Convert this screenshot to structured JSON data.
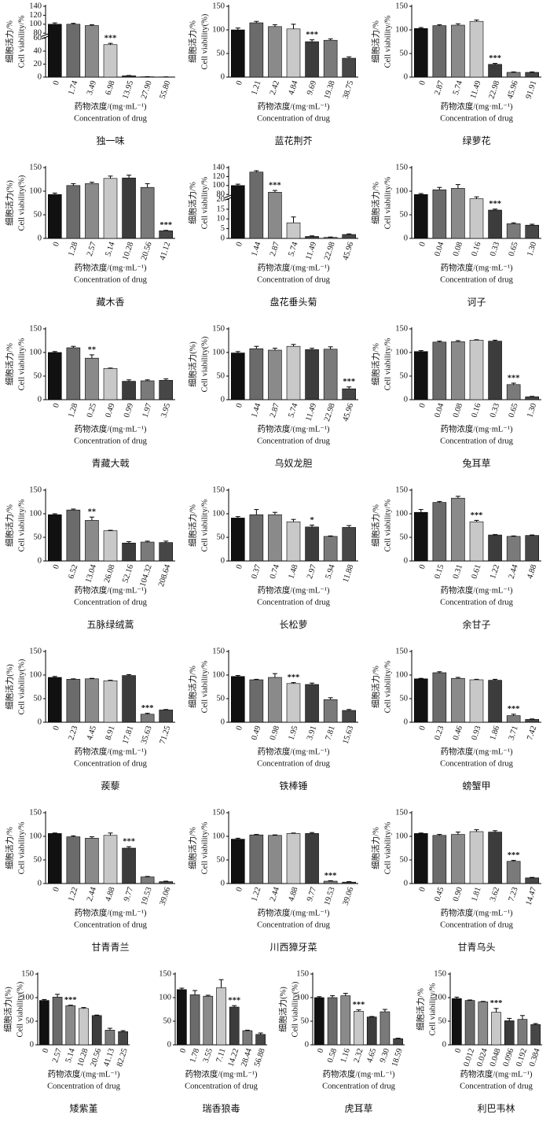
{
  "bar_colors": [
    "#111111",
    "#6b6b6b",
    "#8a8a8a",
    "#c8c8c8",
    "#3c3c3c",
    "#7a7a7a",
    "#474747"
  ],
  "chart_data": [
    {
      "type": "bar",
      "title": "独一味",
      "ylabel": [
        "细胞活力/%",
        "Cell viability/%"
      ],
      "xlabel": [
        "药物浓度/(mg·mL⁻¹)",
        "Concentration of drug"
      ],
      "categories": [
        "0",
        "1.74",
        "3.49",
        "6.98",
        "13.95",
        "27.90",
        "55.80"
      ],
      "values": [
        100,
        100,
        97,
        50,
        2,
        0.5,
        0.3
      ],
      "errors": [
        3,
        2,
        2,
        2,
        0.5,
        0.2,
        0.1
      ],
      "significance": [
        null,
        null,
        null,
        "***",
        null,
        null,
        null
      ],
      "ylim": [
        0,
        140
      ],
      "yticks": [
        0,
        20,
        40,
        60,
        80,
        100,
        120,
        140
      ],
      "broken_axis": [
        60,
        80
      ]
    },
    {
      "type": "bar",
      "title": "蓝花荆芥",
      "ylabel": [
        "细胞活力/%",
        "Cell viability(%)"
      ],
      "xlabel": [
        "药物浓度/(mg·mL⁻¹)",
        "Concentration of drug"
      ],
      "categories": [
        "0",
        "1.21",
        "2.42",
        "4.84",
        "9.69",
        "19.38",
        "38.75"
      ],
      "values": [
        100,
        115,
        107,
        102,
        75,
        78,
        40
      ],
      "errors": [
        4,
        3,
        4,
        10,
        4,
        3,
        3
      ],
      "significance": [
        null,
        null,
        null,
        null,
        "***",
        null,
        null
      ],
      "ylim": [
        0,
        150
      ],
      "yticks": [
        0,
        50,
        100,
        150
      ]
    },
    {
      "type": "bar",
      "title": "绿萝花",
      "ylabel": [
        "细胞活力/%",
        "Cell viability/%"
      ],
      "xlabel": [
        "药物浓度/(mg·mL⁻¹)",
        "Concentration of drug"
      ],
      "categories": [
        "0",
        "2.87",
        "5.74",
        "11.49",
        "22.98",
        "45.96",
        "91.91"
      ],
      "values": [
        103,
        109,
        110,
        118,
        27,
        10,
        10
      ],
      "errors": [
        2,
        2,
        3,
        3,
        2,
        1,
        1
      ],
      "significance": [
        null,
        null,
        null,
        null,
        "***",
        null,
        null
      ],
      "ylim": [
        0,
        150
      ],
      "yticks": [
        0,
        50,
        100,
        150
      ]
    },
    {
      "type": "bar",
      "title": "藏木香",
      "ylabel": [
        "细胞活力(%)",
        "Cell viability(%)"
      ],
      "xlabel": [
        "药物浓度/(mg·mL⁻¹)",
        "Concentration of drug"
      ],
      "categories": [
        "0",
        "1.28",
        "2.57",
        "5.14",
        "10.28",
        "20.56",
        "41.12"
      ],
      "values": [
        93,
        112,
        116,
        127,
        128,
        108,
        16
      ],
      "errors": [
        3,
        4,
        3,
        5,
        6,
        8,
        1
      ],
      "significance": [
        null,
        null,
        null,
        null,
        null,
        null,
        "***"
      ],
      "ylim": [
        0,
        150
      ],
      "yticks": [
        0,
        50,
        100,
        150
      ]
    },
    {
      "type": "bar",
      "title": "盘花垂头菊",
      "ylabel": [
        "细胞活力/%",
        "Cell viability/%"
      ],
      "xlabel": [
        "药物浓度/(mg·mL⁻¹)",
        "Concentration of drug"
      ],
      "categories": [
        "0",
        "1.44",
        "2.87",
        "5.74",
        "11.49",
        "22.98",
        "45.96"
      ],
      "values": [
        100,
        130,
        85,
        8,
        1,
        0.5,
        2
      ],
      "errors": [
        3,
        3,
        4,
        3,
        0.3,
        0.2,
        0.3
      ],
      "significance": [
        null,
        null,
        "***",
        null,
        null,
        null,
        null
      ],
      "ylim": [
        0,
        140
      ],
      "yticks": [
        0,
        5,
        10,
        15,
        20,
        80,
        100,
        120,
        140
      ],
      "broken_axis": [
        20,
        80
      ]
    },
    {
      "type": "bar",
      "title": "诃子",
      "ylabel": [
        "细胞活力/%",
        "Cell viability/%"
      ],
      "xlabel": [
        "药物浓度/(mg·mL⁻¹)",
        "Concentration of drug"
      ],
      "categories": [
        "0",
        "0.04",
        "0.08",
        "0.16",
        "0.33",
        "0.65",
        "1.30"
      ],
      "values": [
        93,
        103,
        106,
        84,
        60,
        31,
        28
      ],
      "errors": [
        2,
        5,
        8,
        4,
        2,
        2,
        2
      ],
      "significance": [
        null,
        null,
        null,
        null,
        "***",
        null,
        null
      ],
      "ylim": [
        0,
        150
      ],
      "yticks": [
        0,
        50,
        100,
        150
      ]
    },
    {
      "type": "bar",
      "title": "青藏大戟",
      "ylabel": [
        "细胞活力/%",
        "Cell viability/%"
      ],
      "xlabel": [
        "药物浓度/(mg·mL⁻¹)",
        "Concentration of drug"
      ],
      "categories": [
        "0",
        "1.28",
        "0.25",
        "0.49",
        "0.99",
        "1.97",
        "3.95"
      ],
      "values": [
        100,
        110,
        88,
        66,
        39,
        40,
        41
      ],
      "errors": [
        2,
        3,
        7,
        1,
        3,
        2,
        3
      ],
      "significance": [
        null,
        null,
        "**",
        null,
        null,
        null,
        null
      ],
      "ylim": [
        0,
        150
      ],
      "yticks": [
        0,
        50,
        100,
        150
      ]
    },
    {
      "type": "bar",
      "title": "乌奴龙胆",
      "ylabel": [
        "细胞活力(%)",
        "Cell viability(%)"
      ],
      "xlabel": [
        "药物浓度/(mg·mL⁻¹)",
        "Concentration of drug"
      ],
      "categories": [
        "0",
        "1.44",
        "2.87",
        "5.74",
        "11.49",
        "22.98",
        "45.96"
      ],
      "values": [
        99,
        108,
        105,
        113,
        106,
        107,
        23
      ],
      "errors": [
        3,
        5,
        4,
        4,
        3,
        5,
        4
      ],
      "significance": [
        null,
        null,
        null,
        null,
        null,
        null,
        "***"
      ],
      "ylim": [
        0,
        150
      ],
      "yticks": [
        0,
        50,
        100,
        150
      ]
    },
    {
      "type": "bar",
      "title": "兔耳草",
      "ylabel": [
        "细胞活力/%",
        "Cell viability/%"
      ],
      "xlabel": [
        "药物浓度/(mg·mL⁻¹)",
        "Concentration of drug"
      ],
      "categories": [
        "0",
        "0.04",
        "0.08",
        "0.16",
        "0.33",
        "0.65",
        "1.30"
      ],
      "values": [
        102,
        122,
        123,
        126,
        124,
        32,
        6
      ],
      "errors": [
        2,
        2,
        2,
        1,
        2,
        3,
        1
      ],
      "significance": [
        null,
        null,
        null,
        null,
        null,
        "***",
        null
      ],
      "ylim": [
        0,
        150
      ],
      "yticks": [
        0,
        50,
        100,
        150
      ]
    },
    {
      "type": "bar",
      "title": "五脉绿绒蒿",
      "ylabel": [
        "细胞活力/%",
        "Cell viability/%"
      ],
      "xlabel": [
        "药物浓度/(mg·mL⁻¹)",
        "Concentration of drug"
      ],
      "categories": [
        "0",
        "6.52",
        "13.04",
        "26.08",
        "52.16",
        "104.32",
        "208.64"
      ],
      "values": [
        98,
        108,
        86,
        64,
        38,
        40,
        39
      ],
      "errors": [
        2,
        2,
        7,
        1,
        3,
        2,
        3
      ],
      "significance": [
        null,
        null,
        "**",
        null,
        null,
        null,
        null
      ],
      "ylim": [
        0,
        150
      ],
      "yticks": [
        0,
        50,
        100,
        150
      ]
    },
    {
      "type": "bar",
      "title": "长松萝",
      "ylabel": [
        "细胞活力/%",
        "Cell viability/%"
      ],
      "xlabel": [
        "药物浓度/(mg·mL⁻¹)",
        "Concentration of drug"
      ],
      "categories": [
        "0",
        "0.37",
        "0.74",
        "1.48",
        "2.97",
        "5.94",
        "11.88"
      ],
      "values": [
        91,
        98,
        98,
        83,
        72,
        52,
        71
      ],
      "errors": [
        3,
        11,
        5,
        5,
        4,
        1,
        4
      ],
      "significance": [
        null,
        null,
        null,
        null,
        "*",
        null,
        null
      ],
      "ylim": [
        0,
        150
      ],
      "yticks": [
        0,
        50,
        100,
        150
      ]
    },
    {
      "type": "bar",
      "title": "余甘子",
      "ylabel": [
        "细胞活力/%",
        "Cell viability/%"
      ],
      "xlabel": [
        "药物浓度/(mg·mL⁻¹)",
        "Concentration of drug"
      ],
      "categories": [
        "0",
        "0.15",
        "0.31",
        "0.61",
        "1.22",
        "2.44",
        "4.88"
      ],
      "values": [
        103,
        124,
        133,
        83,
        55,
        52,
        54
      ],
      "errors": [
        6,
        2,
        4,
        3,
        1,
        1,
        1
      ],
      "significance": [
        null,
        null,
        null,
        "***",
        null,
        null,
        null
      ],
      "ylim": [
        0,
        150
      ],
      "yticks": [
        0,
        50,
        100,
        150
      ]
    },
    {
      "type": "bar",
      "title": "蒺藜",
      "ylabel": [
        "细胞活力(%)",
        "Cell viability(%)"
      ],
      "xlabel": [
        "药物浓度/(mg·mL⁻¹)",
        "Concentration of drug"
      ],
      "categories": [
        "0",
        "2.23",
        "4.45",
        "8.91",
        "17.81",
        "35.63",
        "71.25"
      ],
      "values": [
        95,
        91,
        92,
        88,
        99,
        17,
        26
      ],
      "errors": [
        2,
        1,
        1,
        1,
        2,
        2,
        1
      ],
      "significance": [
        null,
        null,
        null,
        null,
        null,
        "***",
        null
      ],
      "ylim": [
        0,
        150
      ],
      "yticks": [
        0,
        50,
        100,
        150
      ]
    },
    {
      "type": "bar",
      "title": "铁棒锤",
      "ylabel": [
        "细胞活力/%",
        "Cell viability/%"
      ],
      "xlabel": [
        "药物浓度/(mg·mL⁻¹)",
        "Concentration of drug"
      ],
      "categories": [
        "0",
        "0.49",
        "0.98",
        "1.95",
        "3.91",
        "7.81",
        "15.63"
      ],
      "values": [
        97,
        90,
        95,
        82,
        80,
        48,
        25
      ],
      "errors": [
        2,
        1,
        8,
        2,
        3,
        4,
        2
      ],
      "significance": [
        null,
        null,
        null,
        "***",
        null,
        null,
        null
      ],
      "ylim": [
        0,
        150
      ],
      "yticks": [
        0,
        50,
        100,
        150
      ]
    },
    {
      "type": "bar",
      "title": "螃蟹甲",
      "ylabel": [
        "细胞活力/%",
        "Cell viability/%"
      ],
      "xlabel": [
        "药物浓度/(mg·mL⁻¹)",
        "Concentration of drug"
      ],
      "categories": [
        "0",
        "0.23",
        "0.46",
        "0.93",
        "1.86",
        "3.71",
        "7.42"
      ],
      "values": [
        92,
        105,
        93,
        90,
        89,
        14,
        6
      ],
      "errors": [
        1,
        2,
        2,
        1,
        2,
        3,
        1
      ],
      "significance": [
        null,
        null,
        null,
        null,
        null,
        "***",
        null
      ],
      "ylim": [
        0,
        150
      ],
      "yticks": [
        0,
        50,
        100,
        150
      ]
    },
    {
      "type": "bar",
      "title": "甘青青兰",
      "ylabel": [
        "细胞活力/%",
        "Cell viability/%"
      ],
      "xlabel": [
        "药物浓度/(mg·mL⁻¹)",
        "Concentration of drug"
      ],
      "categories": [
        "0",
        "1.22",
        "2.44",
        "4.88",
        "9.77",
        "19.53",
        "39.06"
      ],
      "values": [
        106,
        99,
        96,
        102,
        75,
        14,
        4
      ],
      "errors": [
        1,
        2,
        3,
        5,
        3,
        1,
        1
      ],
      "significance": [
        null,
        null,
        null,
        null,
        "***",
        null,
        null
      ],
      "ylim": [
        0,
        150
      ],
      "yticks": [
        0,
        50,
        100,
        150
      ]
    },
    {
      "type": "bar",
      "title": "川西獐牙菜",
      "ylabel": [
        "细胞活力/%",
        "Cell viability/%"
      ],
      "xlabel": [
        "药物浓度/(mg·mL⁻¹)",
        "Concentration of drug"
      ],
      "categories": [
        "0",
        "1.22",
        "2.44",
        "4.88",
        "9.77",
        "19.53",
        "39.06"
      ],
      "values": [
        94,
        103,
        102,
        106,
        106,
        5,
        3
      ],
      "errors": [
        2,
        1,
        1,
        1,
        2,
        1,
        1
      ],
      "significance": [
        null,
        null,
        null,
        null,
        null,
        "***",
        null
      ],
      "ylim": [
        0,
        150
      ],
      "yticks": [
        0,
        50,
        100,
        150
      ]
    },
    {
      "type": "bar",
      "title": "甘青乌头",
      "ylabel": [
        "细胞活力/%",
        "Cell viability/%"
      ],
      "xlabel": [
        "药物浓度/(mg·mL⁻¹)",
        "Concentration of drug"
      ],
      "categories": [
        "0",
        "0.45",
        "0.90",
        "1.81",
        "3.62",
        "7.23",
        "14.47"
      ],
      "values": [
        106,
        102,
        104,
        110,
        109,
        47,
        12
      ],
      "errors": [
        1,
        2,
        5,
        4,
        3,
        2,
        1
      ],
      "significance": [
        null,
        null,
        null,
        null,
        null,
        "***",
        null
      ],
      "ylim": [
        0,
        150
      ],
      "yticks": [
        0,
        50,
        100,
        150
      ]
    },
    {
      "type": "bar",
      "title": "矮紫堇",
      "ylabel": [
        "细胞活力(%)",
        "Cell viability(%)"
      ],
      "xlabel": [
        "药物浓度/(mg·mL⁻¹)",
        "Concentration of drug"
      ],
      "categories": [
        "0",
        "2.57",
        "5.14",
        "10.28",
        "20.56",
        "41.13",
        "82.25"
      ],
      "values": [
        94,
        101,
        83,
        77,
        62,
        31,
        28
      ],
      "errors": [
        2,
        6,
        1,
        2,
        1,
        4,
        2
      ],
      "significance": [
        null,
        null,
        "***",
        null,
        null,
        null,
        null
      ],
      "ylim": [
        0,
        150
      ],
      "yticks": [
        0,
        50,
        100,
        150
      ]
    },
    {
      "type": "bar",
      "title": "瑞香狼毒",
      "xlabel": [
        "药物浓度/(mg·mL⁻¹)",
        "Concentration of drug"
      ],
      "categories": [
        "0",
        "1.78",
        "3.55",
        "7.11",
        "14.22",
        "28.44",
        "56.88"
      ],
      "values": [
        117,
        106,
        103,
        121,
        80,
        30,
        22
      ],
      "errors": [
        3,
        9,
        2,
        17,
        3,
        1,
        3
      ],
      "significance": [
        null,
        null,
        null,
        null,
        "***",
        null,
        null
      ],
      "ylim": [
        0,
        150
      ],
      "yticks": [
        0,
        50,
        100,
        150
      ]
    },
    {
      "type": "bar",
      "title": "虎耳草",
      "ylabel": [
        "细胞活力(%)",
        "Cell viability(%)"
      ],
      "xlabel": [
        "药物浓度/(mg·mL⁻¹)",
        "Concentration of drug"
      ],
      "categories": [
        "0",
        "0.58",
        "1.16",
        "2.32",
        "4.65",
        "9.30",
        "18.59"
      ],
      "values": [
        100,
        100,
        104,
        71,
        59,
        70,
        13
      ],
      "errors": [
        2,
        4,
        5,
        3,
        1,
        5,
        1
      ],
      "significance": [
        null,
        null,
        null,
        "***",
        null,
        null,
        null
      ],
      "ylim": [
        0,
        150
      ],
      "yticks": [
        0,
        50,
        100,
        150
      ]
    },
    {
      "type": "bar",
      "title": "利巴韦林",
      "ylabel": [
        "细胞活力/%",
        "Cell viability/%"
      ],
      "xlabel": [
        "药物浓度/(mg·mL⁻¹)",
        "Concentration of drug"
      ],
      "categories": [
        "0",
        "0.012",
        "0.024",
        "0.048",
        "0.096",
        "0.192",
        "0.384"
      ],
      "values": [
        98,
        94,
        91,
        69,
        51,
        54,
        43
      ],
      "errors": [
        3,
        1,
        1,
        8,
        5,
        8,
        2
      ],
      "significance": [
        null,
        null,
        null,
        "***",
        null,
        null,
        null
      ],
      "ylim": [
        0,
        150
      ],
      "yticks": [
        0,
        50,
        100,
        150
      ]
    }
  ]
}
